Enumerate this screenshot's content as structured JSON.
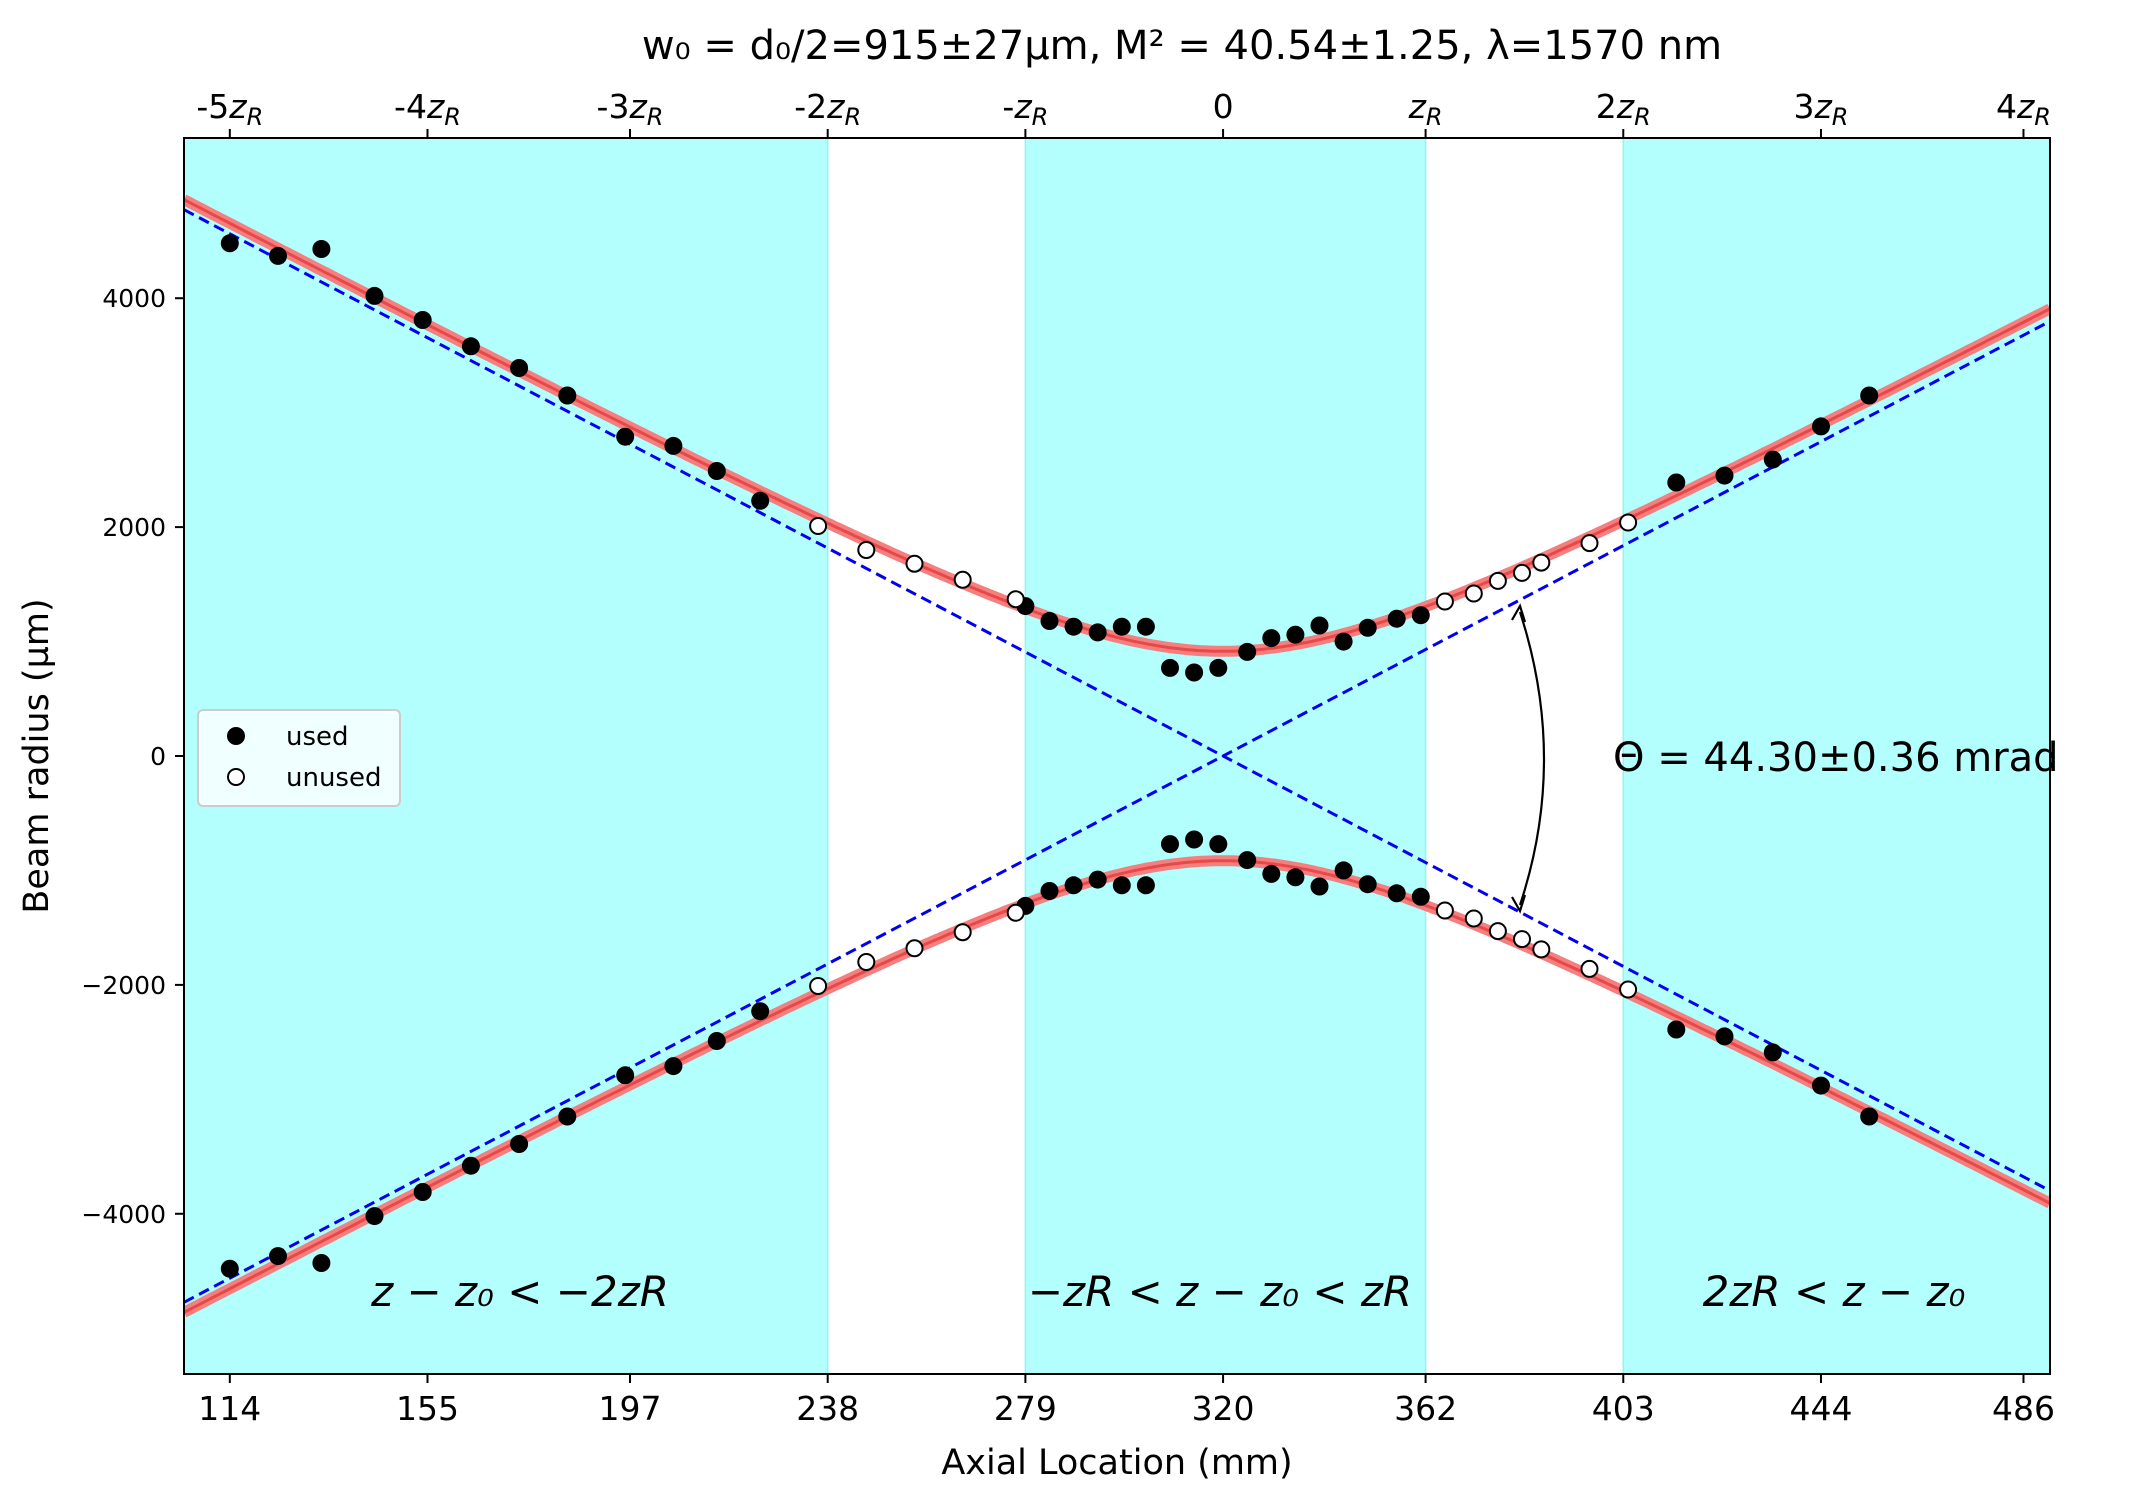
{
  "chart_data": {
    "type": "scatter",
    "title": "w₀ = d₀/2=915±27µm,  M² = 40.54±1.25,  λ=1570 nm",
    "xlabel": "Axial Location (mm)",
    "ylabel": "Beam radius (µm)",
    "xlim": [
      104.5,
      491.5
    ],
    "ylim": [
      -5400,
      5400
    ],
    "x_ticks": [
      "114",
      "155",
      "197",
      "238",
      "279",
      "320",
      "362",
      "403",
      "444",
      "486"
    ],
    "x_tick_values": [
      114,
      155,
      197,
      238,
      279,
      320,
      362,
      403,
      444,
      486
    ],
    "y_ticks": [
      "−4000",
      "−2000",
      "0",
      "2000",
      "4000"
    ],
    "y_tick_values": [
      -4000,
      -2000,
      0,
      2000,
      4000
    ],
    "top_ticks": [
      "-5zR",
      "-4zR",
      "-3zR",
      "-2zR",
      "-zR",
      "0",
      "zR",
      "2zR",
      "3zR",
      "4zR"
    ],
    "top_tick_values": [
      114,
      155,
      197,
      238,
      279,
      320,
      362,
      403,
      444,
      486
    ],
    "shaded_regions": [
      [
        104.5,
        238
      ],
      [
        279,
        362
      ],
      [
        403,
        491.5
      ]
    ],
    "region_labels": [
      "z − z₀ < −2zR",
      "−zR < z − z₀ < zR",
      "2zR < z − z₀"
    ],
    "annotation": "Θ  = 44.30±0.36 mrad",
    "legend_position": "center-left",
    "fit": {
      "w0_um": 915,
      "z0_mm": 320,
      "zR_mm": 41.3,
      "theta_mrad": 44.3
    },
    "series": [
      {
        "name": "used",
        "marker": "filled",
        "x": [
          114,
          124,
          133,
          144,
          154,
          164,
          174,
          184,
          196,
          206,
          215,
          224,
          279,
          284,
          289,
          294,
          299,
          304,
          309,
          314,
          319,
          325,
          330,
          335,
          340,
          345,
          350,
          356,
          361,
          414,
          424,
          434,
          444,
          454
        ],
        "y": [
          4480,
          4370,
          4430,
          4020,
          3810,
          3580,
          3390,
          3150,
          2790,
          2710,
          2490,
          2230,
          1310,
          1180,
          1130,
          1080,
          1130,
          1130,
          770,
          730,
          770,
          910,
          1030,
          1060,
          1140,
          1000,
          1120,
          1200,
          1230,
          2390,
          2450,
          2590,
          2880,
          3150
        ]
      },
      {
        "name": "unused",
        "marker": "open",
        "x": [
          236,
          246,
          256,
          266,
          277,
          366,
          372,
          377,
          382,
          386,
          396,
          404
        ],
        "y": [
          2010,
          1800,
          1680,
          1540,
          1370,
          1350,
          1420,
          1530,
          1600,
          1690,
          1860,
          2040
        ]
      }
    ]
  }
}
